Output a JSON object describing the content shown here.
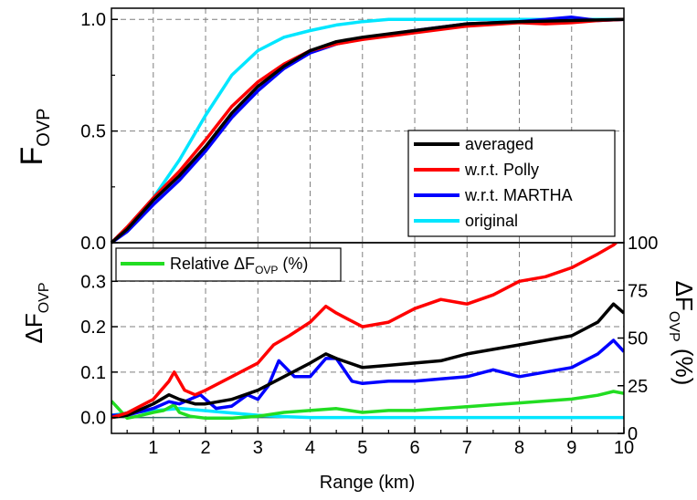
{
  "chart_data": [
    {
      "panel": "top",
      "type": "line",
      "xlabel": "",
      "ylabel_main": "F",
      "ylabel_sub": "OVP",
      "xlim": [
        0.2,
        10.0
      ],
      "ylim": [
        0.0,
        1.05
      ],
      "yticks": [
        "0.0",
        "0.5",
        "1.0"
      ],
      "grid": true,
      "legend_position": "right",
      "series": [
        {
          "name": "averaged",
          "color": "#000000",
          "x": [
            0.2,
            0.5,
            1.0,
            1.5,
            2.0,
            2.5,
            3.0,
            3.5,
            4.0,
            4.5,
            5.0,
            6.0,
            7.0,
            8.0,
            9.0,
            10.0
          ],
          "y": [
            0.0,
            0.06,
            0.19,
            0.3,
            0.43,
            0.58,
            0.7,
            0.79,
            0.86,
            0.9,
            0.92,
            0.95,
            0.98,
            0.99,
            0.995,
            1.0
          ]
        },
        {
          "name": "w.r.t. Polly",
          "color": "#ff0000",
          "x": [
            0.2,
            0.5,
            1.0,
            1.5,
            2.0,
            2.5,
            3.0,
            3.5,
            4.0,
            4.5,
            5.0,
            6.0,
            7.0,
            8.0,
            8.5,
            9.0,
            9.5,
            10.0
          ],
          "y": [
            0.0,
            0.07,
            0.2,
            0.32,
            0.46,
            0.61,
            0.72,
            0.8,
            0.86,
            0.89,
            0.91,
            0.94,
            0.97,
            0.985,
            0.98,
            0.985,
            0.995,
            1.0
          ]
        },
        {
          "name": "w.r.t. MARTHA",
          "color": "#0000ff",
          "x": [
            0.2,
            0.5,
            1.0,
            1.5,
            2.0,
            2.5,
            3.0,
            3.5,
            4.0,
            4.5,
            5.0,
            6.0,
            7.0,
            8.0,
            9.0,
            9.5,
            10.0
          ],
          "y": [
            0.0,
            0.05,
            0.17,
            0.28,
            0.41,
            0.56,
            0.68,
            0.78,
            0.85,
            0.89,
            0.915,
            0.95,
            0.98,
            0.99,
            1.01,
            0.995,
            1.0
          ]
        },
        {
          "name": "original",
          "color": "#00e6ff",
          "x": [
            0.2,
            0.5,
            1.0,
            1.5,
            2.0,
            2.5,
            3.0,
            3.5,
            4.0,
            4.5,
            5.0,
            5.5,
            6.0,
            7.0,
            8.0,
            9.0,
            10.0
          ],
          "y": [
            0.0,
            0.07,
            0.2,
            0.37,
            0.57,
            0.75,
            0.86,
            0.92,
            0.95,
            0.975,
            0.99,
            1.0,
            1.0,
            1.0,
            1.0,
            1.0,
            1.0
          ]
        }
      ]
    },
    {
      "panel": "bottom",
      "type": "line",
      "xlabel": "Range (km)",
      "ylabel_main": "ΔF",
      "ylabel_sub": "OVP",
      "ylabel_right_main": "ΔF",
      "ylabel_right_sub": "OVP",
      "ylabel_right_suffix": " (%)",
      "xlim": [
        0.2,
        10.0
      ],
      "xticks": [
        "1",
        "2",
        "3",
        "4",
        "5",
        "6",
        "7",
        "8",
        "9",
        "10"
      ],
      "ylim": [
        -0.035,
        0.385
      ],
      "yticks": [
        "0.0",
        "0.1",
        "0.2",
        "0.3"
      ],
      "ylim_right": [
        0,
        100
      ],
      "yticks_right": [
        "0",
        "25",
        "50",
        "75",
        "100"
      ],
      "grid": true,
      "legend_position": "top-left",
      "legend_text_prefix": "Relative ΔF",
      "legend_text_sub": "OVP",
      "legend_text_suffix": " (%)",
      "series": [
        {
          "name": "Relative ΔFOVP (%)",
          "color": "#22dd22",
          "axis": "right",
          "x": [
            0.2,
            0.3,
            0.5,
            0.7,
            1.0,
            1.2,
            1.4,
            1.5,
            1.7,
            2.0,
            2.5,
            3.0,
            3.5,
            4.0,
            4.5,
            5.0,
            5.5,
            6.0,
            6.5,
            7.0,
            7.5,
            8.0,
            8.5,
            9.0,
            9.5,
            9.8,
            10.0
          ],
          "y": [
            17,
            14,
            8,
            9,
            11,
            12,
            15,
            11,
            9,
            8,
            8,
            9,
            11,
            12,
            13,
            11,
            12,
            12,
            13,
            14,
            15,
            16,
            17,
            18,
            20,
            22,
            21
          ]
        },
        {
          "name": "averaged",
          "color": "#000000",
          "axis": "left",
          "x": [
            0.2,
            0.5,
            1.0,
            1.3,
            1.5,
            1.8,
            2.0,
            2.5,
            3.0,
            3.5,
            4.0,
            4.3,
            4.5,
            5.0,
            5.5,
            6.0,
            6.5,
            7.0,
            7.5,
            8.0,
            8.5,
            9.0,
            9.5,
            9.8,
            10.0
          ],
          "y": [
            0.0,
            0.005,
            0.03,
            0.05,
            0.04,
            0.03,
            0.03,
            0.04,
            0.06,
            0.09,
            0.12,
            0.14,
            0.13,
            0.11,
            0.115,
            0.12,
            0.125,
            0.14,
            0.15,
            0.16,
            0.17,
            0.18,
            0.21,
            0.25,
            0.23
          ]
        },
        {
          "name": "w.r.t. Polly",
          "color": "#ff0000",
          "axis": "left",
          "x": [
            0.2,
            0.5,
            1.0,
            1.3,
            1.4,
            1.6,
            1.8,
            2.0,
            2.5,
            3.0,
            3.3,
            3.6,
            4.0,
            4.3,
            4.5,
            5.0,
            5.5,
            6.0,
            6.5,
            7.0,
            7.5,
            8.0,
            8.5,
            9.0,
            9.5,
            9.8,
            10.0
          ],
          "y": [
            0.0,
            0.01,
            0.04,
            0.08,
            0.1,
            0.06,
            0.05,
            0.06,
            0.09,
            0.12,
            0.16,
            0.18,
            0.21,
            0.245,
            0.23,
            0.2,
            0.21,
            0.24,
            0.26,
            0.25,
            0.27,
            0.3,
            0.31,
            0.33,
            0.36,
            0.38,
            0.4
          ]
        },
        {
          "name": "w.r.t. MARTHA",
          "color": "#0000ff",
          "axis": "left",
          "x": [
            0.2,
            0.5,
            1.0,
            1.3,
            1.5,
            1.9,
            2.2,
            2.5,
            2.8,
            3.0,
            3.2,
            3.4,
            3.7,
            4.0,
            4.3,
            4.5,
            4.8,
            5.0,
            5.5,
            6.0,
            6.5,
            7.0,
            7.5,
            8.0,
            8.5,
            9.0,
            9.5,
            9.8,
            10.0
          ],
          "y": [
            0.005,
            0.005,
            0.02,
            0.035,
            0.03,
            0.05,
            0.02,
            0.025,
            0.05,
            0.04,
            0.07,
            0.125,
            0.09,
            0.09,
            0.13,
            0.13,
            0.08,
            0.075,
            0.08,
            0.08,
            0.085,
            0.09,
            0.105,
            0.09,
            0.1,
            0.11,
            0.14,
            0.17,
            0.145
          ]
        },
        {
          "name": "original",
          "color": "#00e6ff",
          "axis": "left",
          "x": [
            0.2,
            0.5,
            1.0,
            1.5,
            2.0,
            2.5,
            3.0,
            3.5,
            4.0,
            5.0,
            6.0,
            7.0,
            8.0,
            9.0,
            10.0
          ],
          "y": [
            0.005,
            0.01,
            0.015,
            0.02,
            0.015,
            0.01,
            0.005,
            0.002,
            0.0,
            0.0,
            0.0,
            0.0,
            0.0,
            0.0,
            0.0
          ]
        }
      ]
    }
  ]
}
